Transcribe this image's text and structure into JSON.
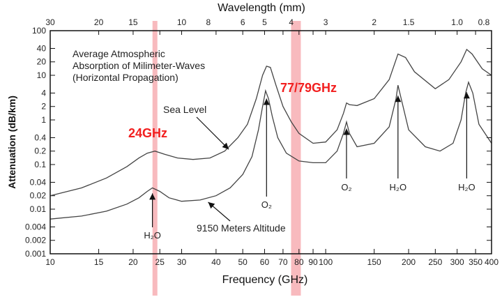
{
  "chart_data": {
    "type": "line",
    "title": "Average Atmospheric Absorption of Milimeter-Waves (Horizontal Propagation)",
    "title_lines": [
      "Average Atmospheric",
      "Absorption of Milimeter-Waves",
      "(Horizontal Propagation)"
    ],
    "xlabel": "Frequency (GHz)",
    "ylabel": "Attenuation (dB/km)",
    "x2label": "Wavelength (mm)",
    "xscale": "log",
    "yscale": "log",
    "xlim": [
      10,
      400
    ],
    "ylim": [
      0.001,
      100
    ],
    "x_ticks": [
      {
        "value": 10,
        "label": "10"
      },
      {
        "value": 15,
        "label": "15"
      },
      {
        "value": 20,
        "label": "20"
      },
      {
        "value": 25,
        "label": "25"
      },
      {
        "value": 30,
        "label": "30"
      },
      {
        "value": 40,
        "label": "40"
      },
      {
        "value": 50,
        "label": "50"
      },
      {
        "value": 60,
        "label": "60"
      },
      {
        "value": 70,
        "label": "70"
      },
      {
        "value": 80,
        "label": "80"
      },
      {
        "value": 90,
        "label": "90"
      },
      {
        "value": 100,
        "label": "100"
      },
      {
        "value": 150,
        "label": "150"
      },
      {
        "value": 200,
        "label": "200"
      },
      {
        "value": 250,
        "label": "250"
      },
      {
        "value": 300,
        "label": "300"
      },
      {
        "value": 350,
        "label": "350"
      },
      {
        "value": 400,
        "label": "400"
      }
    ],
    "y_ticks": [
      {
        "value": 0.001,
        "label": "0.001"
      },
      {
        "value": 0.002,
        "label": "0.002"
      },
      {
        "value": 0.004,
        "label": "0.004"
      },
      {
        "value": 0.01,
        "label": "0.01"
      },
      {
        "value": 0.02,
        "label": "0.02"
      },
      {
        "value": 0.04,
        "label": "0.04"
      },
      {
        "value": 0.1,
        "label": "0.1"
      },
      {
        "value": 0.2,
        "label": "0.2"
      },
      {
        "value": 0.4,
        "label": "0.4"
      },
      {
        "value": 1,
        "label": "1"
      },
      {
        "value": 2,
        "label": "2"
      },
      {
        "value": 4,
        "label": "4"
      },
      {
        "value": 10,
        "label": "10"
      },
      {
        "value": 20,
        "label": "20"
      },
      {
        "value": 40,
        "label": "40"
      },
      {
        "value": 100,
        "label": "100"
      }
    ],
    "wavelength_ticks": [
      {
        "mm": 30,
        "label": "30"
      },
      {
        "mm": 20,
        "label": "20"
      },
      {
        "mm": 15,
        "label": "15"
      },
      {
        "mm": 10,
        "label": "10"
      },
      {
        "mm": 8,
        "label": "8"
      },
      {
        "mm": 6,
        "label": "6"
      },
      {
        "mm": 5,
        "label": "5"
      },
      {
        "mm": 4,
        "label": "4"
      },
      {
        "mm": 3,
        "label": "3"
      },
      {
        "mm": 2,
        "label": "2"
      },
      {
        "mm": 1.5,
        "label": "1.5"
      },
      {
        "mm": 1.0,
        "label": "1.0"
      },
      {
        "mm": 0.8,
        "label": "0.8"
      }
    ],
    "series": [
      {
        "name": "Sea Level",
        "points": [
          [
            10,
            0.02
          ],
          [
            13,
            0.03
          ],
          [
            16,
            0.05
          ],
          [
            19,
            0.09
          ],
          [
            21,
            0.14
          ],
          [
            22.5,
            0.18
          ],
          [
            24,
            0.2
          ],
          [
            26,
            0.17
          ],
          [
            29,
            0.14
          ],
          [
            33,
            0.13
          ],
          [
            38,
            0.14
          ],
          [
            43,
            0.2
          ],
          [
            48,
            0.4
          ],
          [
            52,
            0.8
          ],
          [
            56,
            3
          ],
          [
            59,
            10
          ],
          [
            61,
            16
          ],
          [
            63,
            15
          ],
          [
            66,
            6
          ],
          [
            70,
            2
          ],
          [
            75,
            0.9
          ],
          [
            80,
            0.5
          ],
          [
            90,
            0.3
          ],
          [
            100,
            0.32
          ],
          [
            110,
            0.6
          ],
          [
            116,
            1.4
          ],
          [
            119,
            2.4
          ],
          [
            122,
            2.2
          ],
          [
            130,
            2.1
          ],
          [
            150,
            3
          ],
          [
            170,
            8
          ],
          [
            183,
            30
          ],
          [
            195,
            25
          ],
          [
            210,
            12
          ],
          [
            250,
            5
          ],
          [
            280,
            8
          ],
          [
            310,
            20
          ],
          [
            325,
            38
          ],
          [
            340,
            30
          ],
          [
            370,
            14
          ],
          [
            400,
            10
          ]
        ]
      },
      {
        "name": "9150 Meters Altitude",
        "points": [
          [
            10,
            0.006
          ],
          [
            13,
            0.007
          ],
          [
            16,
            0.009
          ],
          [
            19,
            0.013
          ],
          [
            21,
            0.018
          ],
          [
            22.5,
            0.025
          ],
          [
            23.5,
            0.03
          ],
          [
            25,
            0.025
          ],
          [
            27,
            0.018
          ],
          [
            30,
            0.015
          ],
          [
            35,
            0.016
          ],
          [
            40,
            0.02
          ],
          [
            45,
            0.03
          ],
          [
            50,
            0.06
          ],
          [
            54,
            0.15
          ],
          [
            57,
            0.6
          ],
          [
            59,
            2
          ],
          [
            60.5,
            4.5
          ],
          [
            62,
            3
          ],
          [
            64,
            1.2
          ],
          [
            67,
            0.4
          ],
          [
            72,
            0.18
          ],
          [
            80,
            0.12
          ],
          [
            90,
            0.11
          ],
          [
            100,
            0.11
          ],
          [
            110,
            0.2
          ],
          [
            116,
            0.5
          ],
          [
            119,
            0.9
          ],
          [
            122,
            0.5
          ],
          [
            130,
            0.25
          ],
          [
            150,
            0.3
          ],
          [
            170,
            0.7
          ],
          [
            180,
            3
          ],
          [
            183,
            6
          ],
          [
            188,
            3
          ],
          [
            200,
            0.6
          ],
          [
            230,
            0.25
          ],
          [
            260,
            0.2
          ],
          [
            290,
            0.3
          ],
          [
            310,
            1
          ],
          [
            322,
            4
          ],
          [
            330,
            7
          ],
          [
            342,
            4
          ],
          [
            360,
            0.8
          ],
          [
            400,
            0.3
          ]
        ]
      }
    ],
    "highlights": [
      {
        "label": "24GHz",
        "x": 24
      },
      {
        "label": "77/79GHz",
        "x": 78
      }
    ],
    "annotations": [
      {
        "text": "Sea Level",
        "x": 45,
        "y": 0.2
      },
      {
        "text": "9150 Meters Altitude",
        "x": 37,
        "y": 0.015
      },
      {
        "text": "H₂O",
        "x": 23.5,
        "y": 0.02
      },
      {
        "text": "O₂",
        "x": 61,
        "y": 3
      },
      {
        "text": "O₂",
        "x": 119,
        "y": 0.4
      },
      {
        "text": "H₂O",
        "x": 183,
        "y": 4
      },
      {
        "text": "H₂O",
        "x": 325,
        "y": 4
      }
    ]
  }
}
